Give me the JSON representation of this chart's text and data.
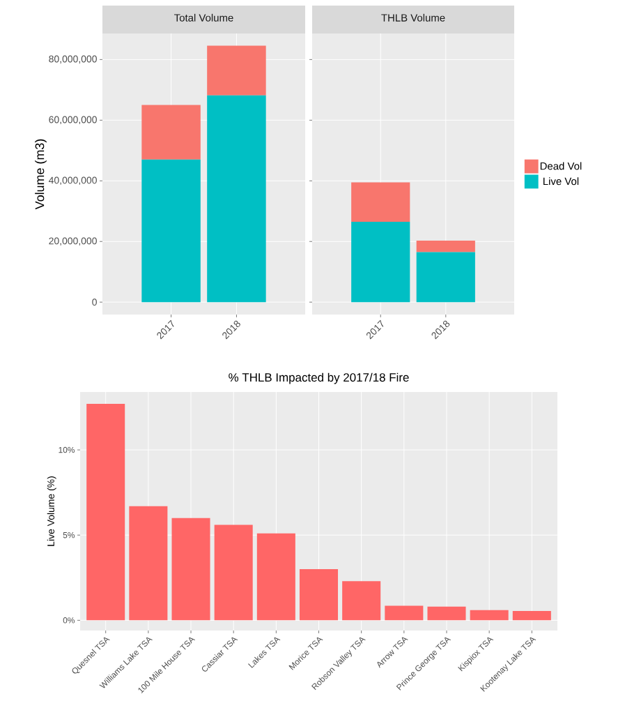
{
  "chart_data": [
    {
      "type": "bar",
      "title": "Total Volume",
      "ylabel": "Volume (m3)",
      "categories": [
        "2017",
        "2018"
      ],
      "stacked": true,
      "series": [
        {
          "color": "#00bfc4",
          "values": [
            47000000,
            68200000
          ]
        },
        {
          "color": "#f8766d",
          "values": [
            18000000,
            16400000
          ]
        }
      ],
      "ylim": [
        -4100000,
        88600000
      ],
      "yticks": [
        {
          "value": 0,
          "label": "0"
        },
        {
          "value": 20000000,
          "label": "20,000,000"
        },
        {
          "value": 40000000,
          "label": "40,000,000"
        },
        {
          "value": 60000000,
          "label": "60,000,000"
        },
        {
          "value": 80000000,
          "label": "80,000,000"
        }
      ],
      "grid": true
    },
    {
      "type": "bar",
      "title": "THLB Volume",
      "categories": [
        "2017",
        "2018"
      ],
      "stacked": true,
      "series": [
        {
          "name": "Live Vol",
          "color": "#00bfc4",
          "values": [
            26500000,
            16500000
          ]
        },
        {
          "name": "Dead Vol",
          "color": "#f8766d",
          "values": [
            13000000,
            3800000
          ]
        }
      ],
      "ylim": [
        -4100000,
        88600000
      ],
      "yticks": [
        {
          "value": 0,
          "label": null
        },
        {
          "value": 20000000,
          "label": null
        },
        {
          "value": 40000000,
          "label": null
        },
        {
          "value": 60000000,
          "label": null
        },
        {
          "value": 80000000,
          "label": null
        }
      ],
      "grid": true,
      "legend": "right",
      "tick_labels": "x"
    },
    {
      "type": "bar",
      "title": "% THLB Impacted by 2017/18 Fire",
      "ylabel": "Live Volume (%)",
      "categories": [
        "Quesnel TSA",
        "Williams Lake TSA",
        "100 Mile House TSA",
        "Cassiar TSA",
        "Lakes TSA",
        "Morice TSA",
        "Robson Valley TSA",
        "Arrow TSA",
        "Prince George TSA",
        "Kispiox TSA",
        "Kootenay Lake TSA"
      ],
      "values": [
        12.7,
        6.7,
        6.0,
        5.6,
        5.1,
        3.0,
        2.3,
        0.85,
        0.8,
        0.6,
        0.55
      ],
      "color": "#ff6666",
      "ylim": [
        -0.6,
        13.4
      ],
      "yticks": [
        {
          "value": 0,
          "label": "0%"
        },
        {
          "value": 5,
          "label": "5%"
        },
        {
          "value": 10,
          "label": "10%"
        }
      ],
      "grid": true
    }
  ]
}
